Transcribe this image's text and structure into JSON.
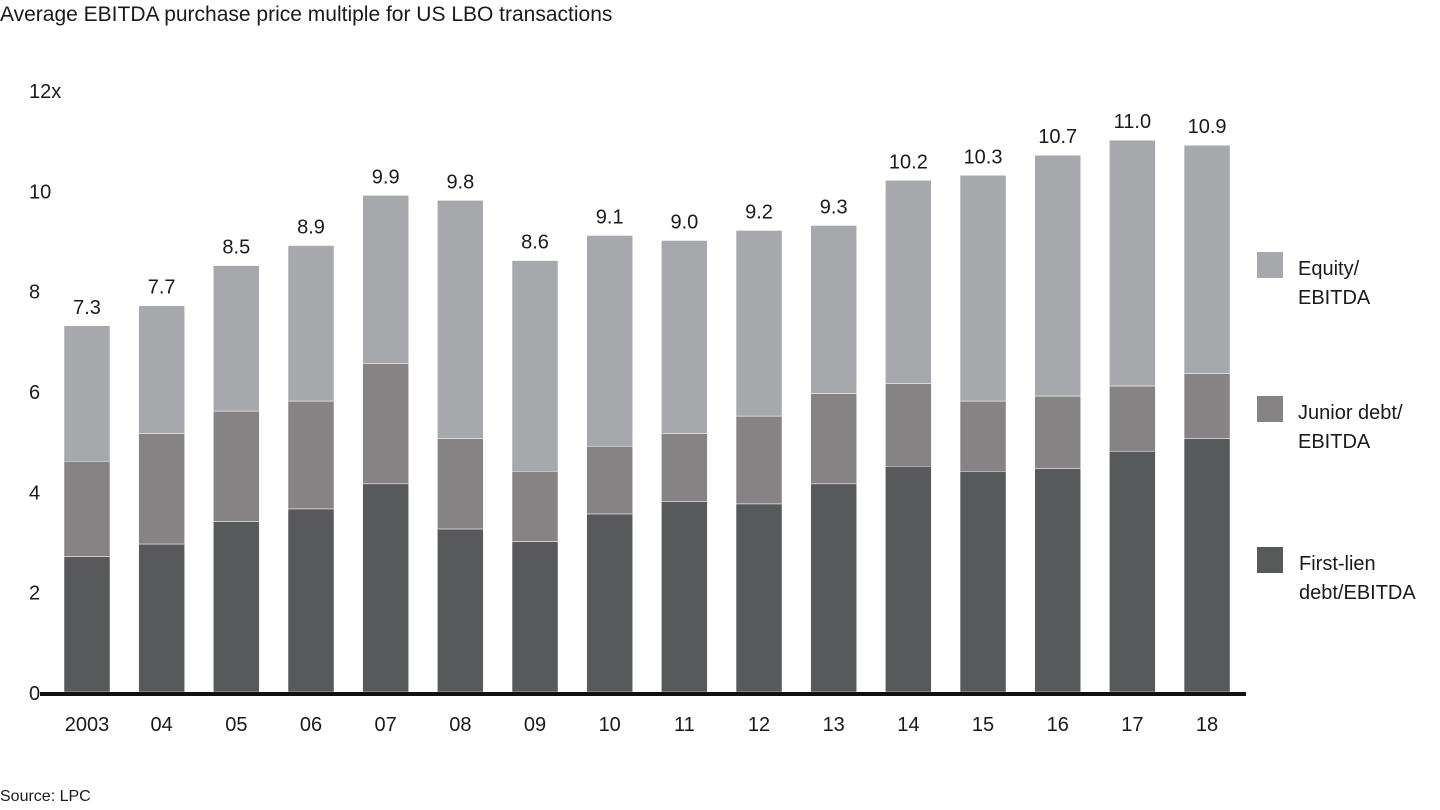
{
  "chart_data": {
    "type": "bar",
    "stacked": true,
    "title": "Average EBITDA purchase price multiple for US LBO transactions",
    "source": "Source: LPC",
    "xlabel": "",
    "ylabel": "",
    "ylim": [
      0,
      12
    ],
    "yticks": [
      "0",
      "2",
      "4",
      "6",
      "8",
      "10",
      "12x"
    ],
    "categories": [
      "2003",
      "04",
      "05",
      "06",
      "07",
      "08",
      "09",
      "10",
      "11",
      "12",
      "13",
      "14",
      "15",
      "16",
      "17",
      "18"
    ],
    "totals": [
      "7.3",
      "7.7",
      "8.5",
      "8.9",
      "9.9",
      "9.8",
      "8.6",
      "9.1",
      "9.0",
      "9.2",
      "9.3",
      "10.2",
      "10.3",
      "10.7",
      "11.0",
      "10.9"
    ],
    "series": [
      {
        "name": "First-lien debt/EBITDA",
        "legend_lines": [
          "First-lien",
          "debt/EBITDA"
        ],
        "color": "#58595b",
        "values": [
          2.7,
          2.95,
          3.4,
          3.65,
          4.15,
          3.25,
          3.0,
          3.55,
          3.8,
          3.75,
          4.15,
          4.5,
          4.4,
          4.45,
          4.8,
          5.05
        ]
      },
      {
        "name": "Junior debt/EBITDA",
        "legend_lines": [
          "Junior debt/",
          "EBITDA"
        ],
        "color": "#858384",
        "values": [
          1.9,
          2.2,
          2.2,
          2.15,
          2.4,
          1.8,
          1.4,
          1.35,
          1.35,
          1.75,
          1.8,
          1.65,
          1.4,
          1.45,
          1.3,
          1.3
        ]
      },
      {
        "name": "Equity/EBITDA",
        "legend_lines": [
          "Equity/",
          "EBITDA"
        ],
        "color": "#a7a8ab",
        "values": [
          2.7,
          2.55,
          2.9,
          3.1,
          3.35,
          4.75,
          4.2,
          4.2,
          3.85,
          3.7,
          3.35,
          4.05,
          4.5,
          4.8,
          4.9,
          4.55
        ]
      }
    ],
    "legend_position": "right",
    "grid": false
  }
}
